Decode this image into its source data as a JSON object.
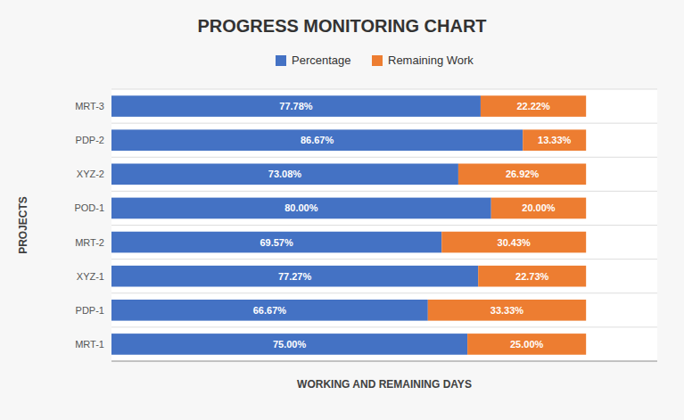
{
  "chart_data": {
    "type": "bar",
    "orientation": "horizontal",
    "stacked": true,
    "title": "PROGRESS MONITORING CHART",
    "xlabel": "WORKING AND REMAINING DAYS",
    "ylabel": "PROJECTS",
    "categories": [
      "MRT-1",
      "PDP-1",
      "XYZ-1",
      "MRT-2",
      "POD-1",
      "XYZ-2",
      "PDP-2",
      "MRT-3"
    ],
    "series": [
      {
        "name": "Percentage",
        "color": "#4472C4",
        "values": [
          75.0,
          66.67,
          77.27,
          69.57,
          80.0,
          73.08,
          86.67,
          77.78
        ],
        "value_labels": [
          "75.00%",
          "66.67%",
          "77.27%",
          "69.57%",
          "80.00%",
          "73.08%",
          "86.67%",
          "77.78%"
        ]
      },
      {
        "name": "Remaining Work",
        "color": "#ED7D31",
        "values": [
          25.0,
          33.33,
          22.73,
          30.43,
          20.0,
          26.92,
          13.33,
          22.22
        ],
        "value_labels": [
          "25.00%",
          "33.33%",
          "22.73%",
          "30.43%",
          "20.00%",
          "26.92%",
          "13.33%",
          "22.22%"
        ]
      }
    ],
    "xlim": [
      0,
      115
    ],
    "xticks": [],
    "data_labels": true,
    "grid": true,
    "legend": "top",
    "tick_labels": "y"
  }
}
